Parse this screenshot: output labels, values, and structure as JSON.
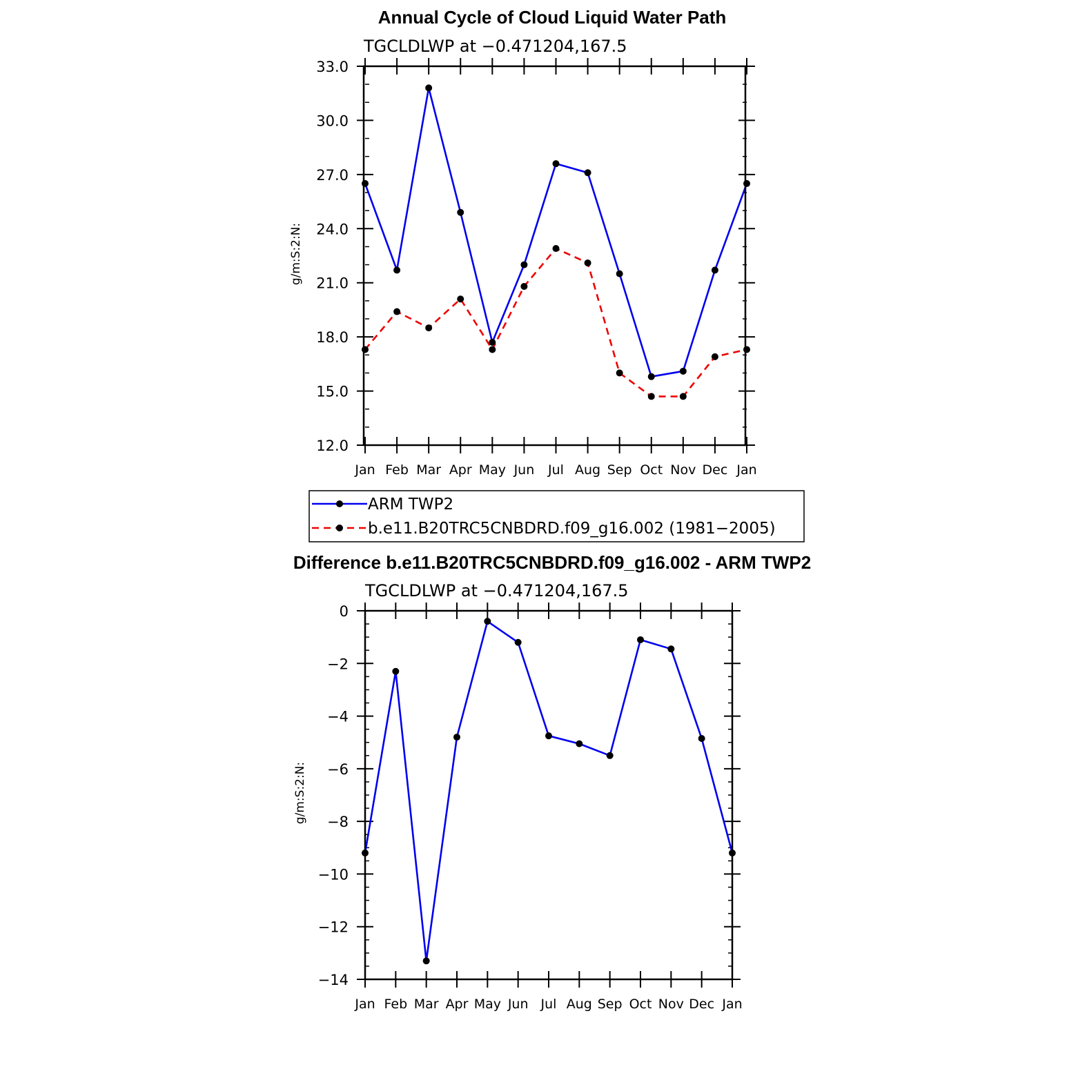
{
  "chart_data": [
    {
      "type": "line",
      "title": "Annual Cycle of Cloud Liquid Water Path",
      "subtitle": "TGCLDLWP at −0.471204,167.5",
      "ylabel": "g/m:S:2:N:",
      "ylim": [
        12.0,
        33.0
      ],
      "yticks": [
        "12.0",
        "15.0",
        "18.0",
        "21.0",
        "24.0",
        "27.0",
        "30.0",
        "33.0"
      ],
      "categories": [
        "Jan",
        "Feb",
        "Mar",
        "Apr",
        "May",
        "Jun",
        "Jul",
        "Aug",
        "Sep",
        "Oct",
        "Nov",
        "Dec",
        "Jan"
      ],
      "series": [
        {
          "name": "ARM TWP2",
          "color": "#0000ee",
          "dash": "solid",
          "values": [
            26.5,
            21.7,
            31.8,
            24.9,
            17.7,
            22.0,
            27.6,
            27.1,
            21.5,
            15.8,
            16.1,
            21.7,
            26.5
          ]
        },
        {
          "name": "b.e11.B20TRC5CNBDRD.f09_g16.002 (1981−2005)",
          "color": "#ee0000",
          "dash": "dashed",
          "values": [
            17.3,
            19.4,
            18.5,
            20.1,
            17.3,
            20.8,
            22.9,
            22.1,
            16.0,
            14.7,
            14.7,
            16.9,
            17.3
          ]
        }
      ],
      "legend": "below"
    },
    {
      "type": "line",
      "title": "Difference b.e11.B20TRC5CNBDRD.f09_g16.002 - ARM TWP2",
      "subtitle": "TGCLDLWP at −0.471204,167.5",
      "ylabel": "g/m:S:2:N:",
      "ylim": [
        -14,
        0
      ],
      "yticks": [
        "−14",
        "−12",
        "−10",
        "−8",
        "−6",
        "−4",
        "−2",
        "0"
      ],
      "categories": [
        "Jan",
        "Feb",
        "Mar",
        "Apr",
        "May",
        "Jun",
        "Jul",
        "Aug",
        "Sep",
        "Oct",
        "Nov",
        "Dec",
        "Jan"
      ],
      "series": [
        {
          "color": "#0000ee",
          "dash": "solid",
          "values": [
            -9.2,
            -2.3,
            -13.3,
            -4.8,
            -0.4,
            -1.2,
            -4.75,
            -5.05,
            -5.5,
            -1.1,
            -1.45,
            -4.85,
            -9.2
          ]
        }
      ]
    }
  ]
}
